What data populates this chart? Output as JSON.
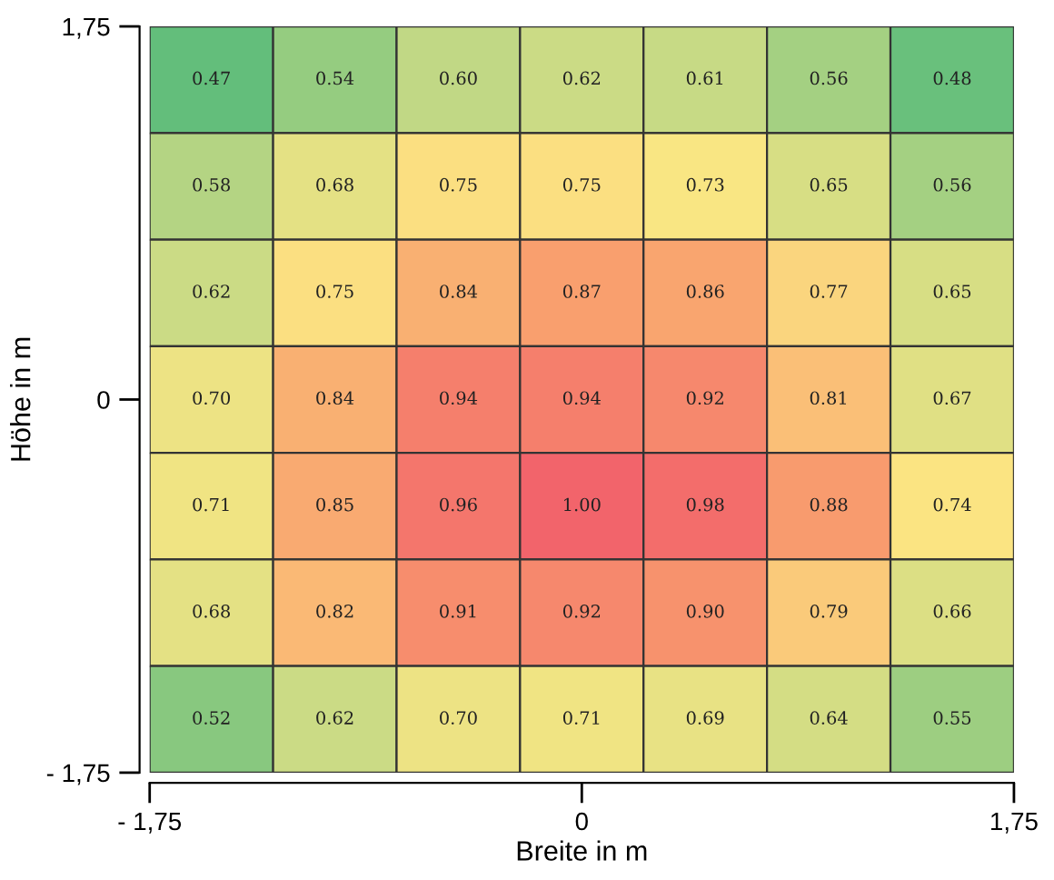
{
  "chart_data": {
    "type": "heatmap",
    "xlabel": "Breite in m",
    "ylabel": "Höhe in m",
    "x": [
      -1.5,
      -1,
      -0.5,
      0,
      0.5,
      1,
      1.5
    ],
    "y": [
      1.5,
      1,
      0.5,
      0,
      -0.5,
      -1,
      -1.5
    ],
    "cells": [
      [
        0.47,
        0.54,
        0.6,
        0.62,
        0.61,
        0.56,
        0.48
      ],
      [
        0.58,
        0.68,
        0.75,
        0.75,
        0.73,
        0.65,
        0.56
      ],
      [
        0.62,
        0.75,
        0.84,
        0.87,
        0.86,
        0.77,
        0.65
      ],
      [
        0.7,
        0.84,
        0.94,
        0.94,
        0.92,
        0.81,
        0.67
      ],
      [
        0.71,
        0.85,
        0.96,
        1.0,
        0.98,
        0.88,
        0.74
      ],
      [
        0.68,
        0.82,
        0.91,
        0.92,
        0.9,
        0.79,
        0.66
      ],
      [
        0.52,
        0.62,
        0.7,
        0.71,
        0.69,
        0.64,
        0.55
      ]
    ],
    "cell_labels": [
      [
        "0.47",
        "0.54",
        "0.60",
        "0.62",
        "0.61",
        "0.56",
        "0.48"
      ],
      [
        "0.58",
        "0.68",
        "0.75",
        "0.75",
        "0.73",
        "0.65",
        "0.56"
      ],
      [
        "0.62",
        "0.75",
        "0.84",
        "0.87",
        "0.86",
        "0.77",
        "0.65"
      ],
      [
        "0.70",
        "0.84",
        "0.94",
        "0.94",
        "0.92",
        "0.81",
        "0.67"
      ],
      [
        "0.71",
        "0.85",
        "0.96",
        "1.00",
        "0.98",
        "0.88",
        "0.74"
      ],
      [
        "0.68",
        "0.82",
        "0.91",
        "0.92",
        "0.90",
        "0.79",
        "0.66"
      ],
      [
        "0.52",
        "0.62",
        "0.70",
        "0.71",
        "0.69",
        "0.64",
        "0.55"
      ]
    ],
    "colors": [
      "#63be7b",
      "#c4d985",
      "#fbe783",
      "#f9a16e",
      "#f2646b"
    ],
    "xlim": [
      -1.75,
      1.75
    ],
    "ylim": [
      -1.75,
      1.75
    ],
    "xticks": [
      {
        "value": -1.75,
        "label": "- 1,75"
      },
      {
        "value": 0,
        "label": "0"
      },
      {
        "value": 1.75,
        "label": "1,75"
      }
    ],
    "yticks": [
      {
        "value": -1.75,
        "label": "- 1,75"
      },
      {
        "value": 0,
        "label": "0"
      },
      {
        "value": 1.75,
        "label": "1,75"
      }
    ],
    "data_labels": true,
    "grid": false,
    "legend": false
  }
}
